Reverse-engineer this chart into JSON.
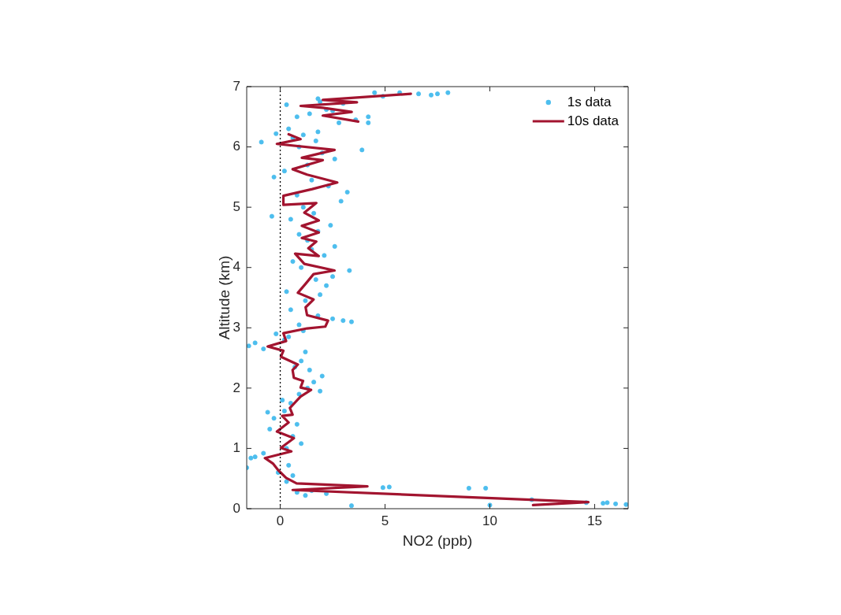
{
  "chart_data": {
    "type": "scatter",
    "xlabel": "NO2 (ppb)",
    "ylabel": "Altitude (km)",
    "xlim": [
      -1.6,
      16.6
    ],
    "xticks": [
      0,
      5,
      10,
      15
    ],
    "ylim": [
      0,
      7
    ],
    "yticks": [
      0,
      1,
      2,
      3,
      4,
      5,
      6,
      7
    ],
    "grid": false,
    "legend": "top right",
    "ref_lines": [
      {
        "axis": "x",
        "value": 0,
        "color": "#000000",
        "line_style": "dotted"
      }
    ],
    "series": [
      {
        "name": "1s data",
        "type": "scatter",
        "marker": "circle",
        "color": "#4dbeee",
        "x": [
          16.5,
          16,
          15.6,
          15.4,
          14.6,
          10,
          3.4,
          12,
          9,
          9.8,
          4.9,
          5.2,
          1.2,
          0.8,
          1.5,
          2.2,
          0.3,
          0.6,
          -0.1,
          0.4,
          -1.6,
          -1.4,
          -1.2,
          -0.8,
          0.3,
          1.0,
          0.6,
          -0.5,
          0.8,
          -0.3,
          0.2,
          0.5,
          0.9,
          -0.6,
          0.1,
          1.3,
          1.6,
          1.9,
          2.0,
          1.4,
          0.7,
          1.0,
          1.2,
          -1.5,
          -1.2,
          -0.8,
          0.4,
          -0.2,
          0.2,
          0.9,
          1.1,
          3.4,
          3.0,
          2.5,
          1.8,
          0.5,
          1.2,
          1.9,
          0.3,
          2.2,
          2.5,
          3.3,
          1.7,
          1.0,
          0.6,
          2.1,
          1.5,
          2.6,
          1.3,
          0.9,
          1.8,
          2.4,
          0.5,
          -0.4,
          1.6,
          1.1,
          2.9,
          3.2,
          0.8,
          2.3,
          1.5,
          -0.3,
          0.2,
          1.3,
          2.6,
          3.9,
          2.0,
          0.9,
          1.7,
          -0.9,
          0.6,
          1.1,
          -0.2,
          0.4,
          1.8,
          2.8,
          4.2,
          4.2,
          3.6,
          0.8,
          1.4,
          2.5,
          0.3,
          1.9,
          4.9,
          5.7,
          6.6,
          7.2,
          8.0,
          7.5,
          4.5,
          1.8,
          3.0,
          2.2
        ],
        "values": [
          0.07,
          0.08,
          0.1,
          0.09,
          0.1,
          0.06,
          0.05,
          0.15,
          0.34,
          0.34,
          0.35,
          0.36,
          0.22,
          0.27,
          0.3,
          0.25,
          0.45,
          0.55,
          0.6,
          0.72,
          0.68,
          0.84,
          0.86,
          0.92,
          1.0,
          1.08,
          1.2,
          1.32,
          1.4,
          1.5,
          1.62,
          1.75,
          1.9,
          1.6,
          1.8,
          2.0,
          2.1,
          1.95,
          2.2,
          2.3,
          2.35,
          2.45,
          2.6,
          2.7,
          2.75,
          2.65,
          2.85,
          2.9,
          2.8,
          3.05,
          2.95,
          3.1,
          3.12,
          3.15,
          3.2,
          3.3,
          3.45,
          3.55,
          3.6,
          3.7,
          3.85,
          3.95,
          3.8,
          4.0,
          4.1,
          4.2,
          4.3,
          4.35,
          4.45,
          4.55,
          4.6,
          4.7,
          4.8,
          4.85,
          4.9,
          5.0,
          5.1,
          5.25,
          5.2,
          5.35,
          5.45,
          5.5,
          5.6,
          5.7,
          5.8,
          5.95,
          5.9,
          6.0,
          6.1,
          6.08,
          6.15,
          6.2,
          6.22,
          6.3,
          6.25,
          6.4,
          6.5,
          6.4,
          6.45,
          6.5,
          6.55,
          6.6,
          6.7,
          6.75,
          6.84,
          6.9,
          6.88,
          6.86,
          6.9,
          6.88,
          6.9,
          6.8,
          6.72,
          6.62
        ]
      },
      {
        "name": "10s data",
        "type": "line",
        "marker": "none",
        "line_style": "solid",
        "color": "#a2142f",
        "x": [
          12.06,
          14.7,
          0.59,
          4.16,
          0.78,
          0.28,
          -0.1,
          -0.35,
          -0.73,
          0.53,
          0.03,
          0.65,
          -0.16,
          0.4,
          0.09,
          0.59,
          0.46,
          0.97,
          1.47,
          0.97,
          1.09,
          0.65,
          0.59,
          0.84,
          0.03,
          0.15,
          -0.6,
          0.28,
          0.15,
          1.28,
          2.15,
          2.28,
          1.28,
          1.21,
          1.59,
          0.84,
          1.21,
          1.59,
          2.59,
          1.15,
          0.71,
          1.84,
          1.34,
          1.72,
          1.03,
          1.84,
          1.03,
          1.84,
          1.15,
          1.72,
          0.15,
          0.15,
          1.53,
          2.72,
          1.28,
          0.59,
          2.03,
          1.03,
          2.59,
          -0.16,
          0.97,
          0.4,
          null,
          3.72,
          2.03,
          3.41,
          2.03,
          0.97,
          3.66,
          2.03,
          6.23
        ],
        "values": [
          0.06,
          0.11,
          0.31,
          0.37,
          0.42,
          0.51,
          0.64,
          0.75,
          0.84,
          0.95,
          1.01,
          1.17,
          1.28,
          1.43,
          1.54,
          1.56,
          1.67,
          1.86,
          1.97,
          2.01,
          2.12,
          2.17,
          2.3,
          2.39,
          2.52,
          2.62,
          2.69,
          2.78,
          2.91,
          2.99,
          3.02,
          3.12,
          3.21,
          3.34,
          3.47,
          3.58,
          3.73,
          3.89,
          3.95,
          4.06,
          4.23,
          4.19,
          4.32,
          4.43,
          4.49,
          4.58,
          4.69,
          4.78,
          4.91,
          5.07,
          5.04,
          5.19,
          5.3,
          5.41,
          5.54,
          5.63,
          5.78,
          5.82,
          5.95,
          6.05,
          6.13,
          6.21,
          null,
          6.42,
          6.52,
          6.58,
          6.65,
          6.68,
          6.74,
          6.78,
          6.88
        ]
      }
    ]
  }
}
